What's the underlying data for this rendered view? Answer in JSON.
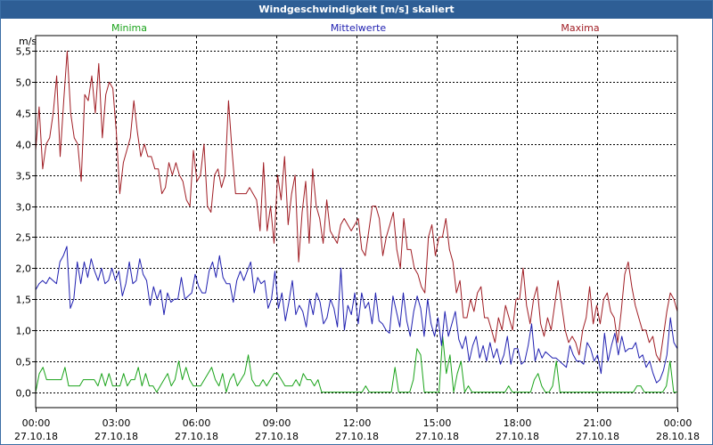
{
  "window": {
    "title": "Windgeschwindigkeit [m/s] skaliert"
  },
  "chart_data": {
    "type": "line",
    "title": "Windgeschwindigkeit [m/s] skaliert",
    "ylabel": "m/s",
    "ylim": [
      -0.25,
      5.75
    ],
    "yticks": [
      0.0,
      0.5,
      1.0,
      1.5,
      2.0,
      2.5,
      3.0,
      3.5,
      4.0,
      4.5,
      5.0,
      5.5
    ],
    "ytick_labels": [
      "0,0",
      "0,5",
      "1,0",
      "1,5",
      "2,0",
      "2,5",
      "3,0",
      "3,5",
      "4,0",
      "4,5",
      "5,0",
      "5,5"
    ],
    "xlim": [
      0,
      24
    ],
    "xticks": [
      0,
      3,
      6,
      9,
      12,
      15,
      18,
      21,
      24
    ],
    "xtick_labels": [
      [
        "00:00",
        "27.10.18"
      ],
      [
        "03:00",
        "27.10.18"
      ],
      [
        "06:00",
        "27.10.18"
      ],
      [
        "09:00",
        "27.10.18"
      ],
      [
        "12:00",
        "27.10.18"
      ],
      [
        "15:00",
        "27.10.18"
      ],
      [
        "18:00",
        "27.10.18"
      ],
      [
        "21:00",
        "27.10.18"
      ],
      [
        "00:00",
        "28.10.18"
      ]
    ],
    "grid": true,
    "series": [
      {
        "name": "Minima",
        "color": "#1aa31a",
        "values": [
          0.0,
          0.3,
          0.4,
          0.2,
          0.2,
          0.2,
          0.2,
          0.2,
          0.4,
          0.1,
          0.1,
          0.1,
          0.1,
          0.2,
          0.2,
          0.2,
          0.2,
          0.1,
          0.3,
          0.1,
          0.3,
          0.1,
          0.1,
          0.1,
          0.3,
          0.1,
          0.2,
          0.2,
          0.4,
          0.1,
          0.3,
          0.1,
          0.1,
          0.0,
          0.1,
          0.2,
          0.3,
          0.1,
          0.2,
          0.5,
          0.2,
          0.4,
          0.2,
          0.1,
          0.1,
          0.1,
          0.2,
          0.3,
          0.4,
          0.2,
          0.1,
          0.3,
          0.0,
          0.2,
          0.3,
          0.1,
          0.2,
          0.3,
          0.6,
          0.2,
          0.1,
          0.1,
          0.2,
          0.1,
          0.2,
          0.3,
          0.3,
          0.2,
          0.1,
          0.1,
          0.1,
          0.2,
          0.1,
          0.3,
          0.2,
          0.2,
          0.1,
          0.2,
          0.0,
          0.0,
          0.0,
          0.0,
          0.0,
          0.0,
          0.0,
          0.0,
          0.0,
          0.0,
          0.0,
          0.0,
          0.1,
          0.0,
          0.0,
          0.0,
          0.0,
          0.0,
          0.0,
          0.0,
          0.4,
          0.0,
          0.0,
          0.0,
          0.0,
          0.2,
          0.7,
          0.6,
          0.0,
          0.0,
          0.0,
          0.0,
          0.0,
          0.9,
          0.3,
          0.6,
          0.0,
          0.3,
          0.5,
          0.0,
          0.1,
          0.0,
          0.0,
          0.0,
          0.0,
          0.0,
          0.0,
          0.0,
          0.0,
          0.0,
          0.0,
          0.1,
          0.0,
          0.0,
          0.0,
          0.0,
          0.0,
          0.0,
          0.2,
          0.3,
          0.1,
          0.0,
          0.0,
          0.1,
          0.5,
          0.0,
          0.0,
          0.0,
          0.0,
          0.0,
          0.0,
          0.0,
          0.0,
          0.0,
          0.0,
          0.0,
          0.0,
          0.0,
          0.0,
          0.0,
          0.0,
          0.0,
          0.0,
          0.0,
          0.0,
          0.0,
          0.1,
          0.1,
          0.0,
          0.0,
          0.0,
          0.0,
          0.0,
          0.0,
          0.1,
          0.5,
          0.0,
          0.0
        ]
      },
      {
        "name": "Mittelwerte",
        "color": "#1f1fb0",
        "values": [
          1.65,
          1.75,
          1.8,
          1.75,
          1.85,
          1.8,
          1.75,
          2.1,
          2.2,
          2.35,
          1.35,
          1.5,
          2.1,
          1.75,
          2.1,
          1.85,
          2.15,
          1.95,
          1.8,
          2.0,
          1.75,
          1.8,
          2.0,
          1.8,
          1.95,
          1.55,
          1.75,
          2.1,
          1.75,
          1.8,
          2.15,
          1.9,
          1.8,
          1.4,
          1.7,
          1.5,
          1.65,
          1.25,
          1.6,
          1.45,
          1.5,
          1.5,
          1.85,
          1.5,
          1.55,
          1.6,
          1.9,
          1.7,
          1.6,
          1.6,
          1.95,
          2.1,
          1.85,
          2.2,
          1.85,
          1.75,
          1.75,
          1.45,
          1.8,
          1.95,
          1.8,
          1.95,
          2.1,
          1.6,
          1.85,
          1.75,
          1.8,
          1.35,
          1.5,
          1.95,
          1.35,
          1.6,
          1.15,
          1.45,
          1.8,
          1.25,
          1.4,
          1.3,
          1.05,
          1.5,
          1.25,
          1.6,
          1.45,
          1.1,
          1.2,
          1.5,
          1.35,
          1.05,
          2.0,
          1.0,
          1.4,
          1.25,
          1.6,
          1.1,
          1.6,
          1.35,
          1.45,
          1.1,
          1.6,
          1.15,
          1.1,
          1.0,
          0.95,
          1.55,
          1.3,
          1.05,
          1.6,
          1.15,
          0.9,
          1.3,
          1.55,
          1.35,
          0.9,
          1.5,
          1.1,
          0.9,
          1.2,
          0.75,
          1.3,
          0.9,
          1.1,
          1.3,
          0.85,
          0.7,
          0.9,
          0.5,
          0.75,
          0.9,
          0.55,
          0.75,
          0.5,
          0.8,
          0.55,
          0.7,
          0.45,
          0.6,
          0.9,
          0.45,
          0.7,
          0.7,
          0.45,
          0.5,
          0.75,
          1.1,
          0.5,
          0.7,
          0.55,
          0.65,
          0.6,
          0.55,
          0.55,
          0.5,
          0.45,
          0.4,
          0.75,
          0.6,
          0.5,
          0.5,
          0.45,
          0.8,
          0.7,
          0.5,
          0.6,
          0.3,
          0.95,
          0.5,
          0.75,
          0.95,
          0.6,
          0.9,
          0.65,
          0.7,
          0.7,
          0.8,
          0.55,
          0.6,
          0.4,
          0.5,
          0.3,
          0.15,
          0.2,
          0.35,
          0.6,
          1.2,
          0.8,
          0.7
        ]
      },
      {
        "name": "Maxima",
        "color": "#a01d24",
        "values": [
          3.9,
          4.6,
          3.6,
          4.0,
          4.1,
          4.5,
          5.1,
          3.8,
          4.7,
          5.5,
          4.5,
          4.1,
          4.0,
          3.4,
          4.8,
          4.7,
          5.1,
          4.5,
          5.3,
          4.1,
          4.8,
          5.0,
          4.9,
          4.2,
          3.2,
          3.7,
          3.9,
          4.1,
          4.7,
          4.2,
          3.8,
          4.0,
          3.8,
          3.8,
          3.6,
          3.6,
          3.2,
          3.3,
          3.7,
          3.5,
          3.7,
          3.5,
          3.4,
          3.1,
          3.0,
          3.9,
          3.4,
          3.5,
          4.0,
          3.0,
          2.9,
          3.5,
          3.6,
          3.3,
          3.5,
          4.7,
          3.9,
          3.2,
          3.2,
          3.2,
          3.2,
          3.3,
          3.2,
          3.1,
          2.6,
          3.7,
          2.6,
          3.0,
          2.4,
          3.5,
          3.1,
          3.8,
          2.7,
          3.2,
          3.5,
          2.1,
          2.9,
          3.4,
          2.4,
          3.6,
          3.0,
          2.8,
          2.4,
          3.1,
          2.6,
          2.5,
          2.4,
          2.7,
          2.8,
          2.7,
          2.6,
          2.7,
          2.8,
          2.3,
          2.2,
          2.6,
          3.0,
          3.0,
          2.8,
          2.2,
          2.5,
          2.7,
          2.9,
          2.3,
          2.0,
          2.8,
          2.3,
          2.3,
          2.0,
          1.9,
          1.7,
          1.6,
          2.5,
          2.7,
          2.2,
          2.5,
          2.5,
          2.8,
          2.3,
          2.1,
          1.6,
          1.8,
          1.2,
          1.2,
          1.5,
          1.3,
          1.6,
          1.7,
          1.2,
          1.2,
          1.0,
          0.8,
          1.2,
          1.0,
          1.4,
          1.2,
          1.0,
          1.5,
          1.5,
          2.0,
          1.4,
          1.1,
          1.5,
          1.7,
          1.1,
          0.9,
          1.2,
          1.0,
          1.4,
          1.8,
          1.4,
          1.0,
          0.8,
          0.9,
          0.8,
          0.6,
          1.0,
          1.2,
          1.7,
          1.1,
          1.4,
          1.1,
          1.5,
          1.6,
          1.3,
          1.2,
          0.8,
          1.3,
          1.9,
          2.1,
          1.7,
          1.4,
          1.2,
          1.0,
          1.0,
          0.8,
          0.9,
          0.6,
          0.5,
          0.9,
          1.3,
          1.6,
          1.5,
          1.3
        ]
      }
    ]
  }
}
